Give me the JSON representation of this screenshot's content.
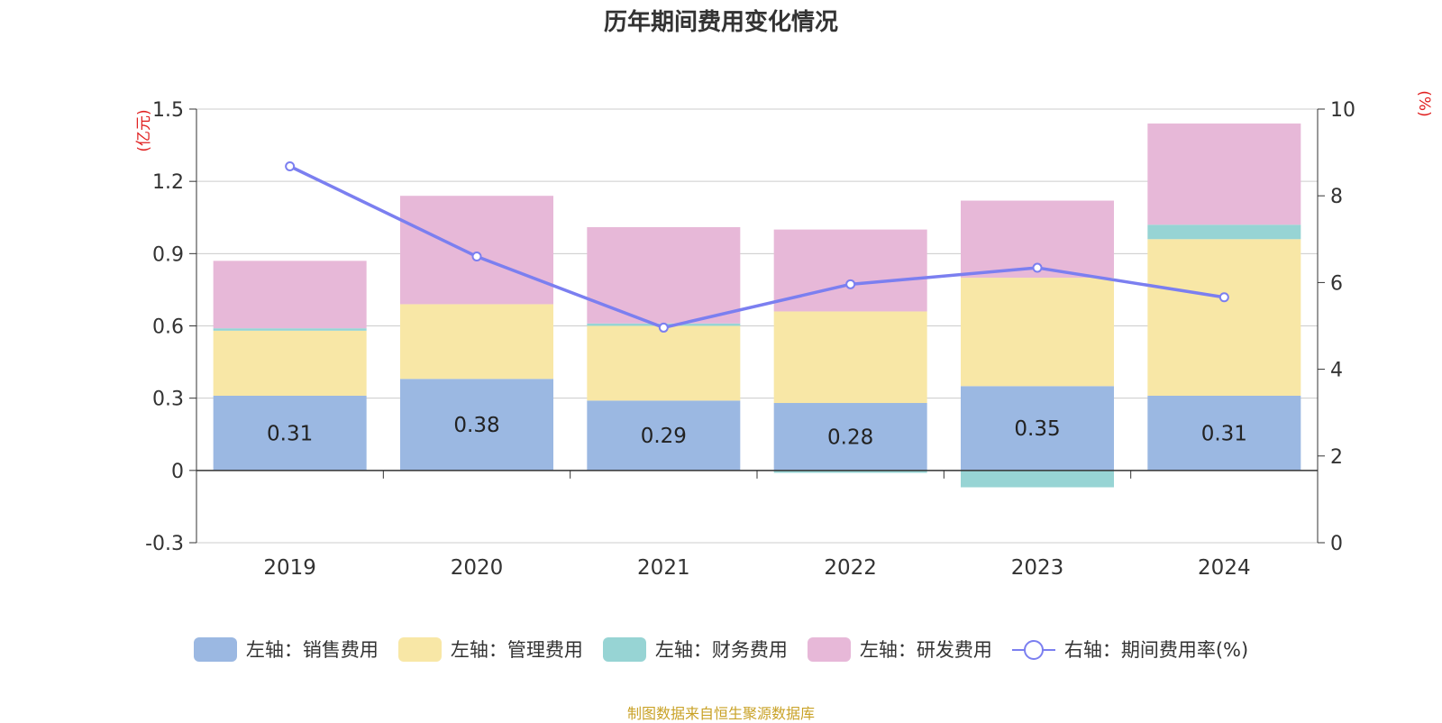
{
  "chart_data": {
    "type": "bar",
    "title": "历年期间费用变化情况",
    "categories": [
      "2019",
      "2020",
      "2021",
      "2022",
      "2023",
      "2024"
    ],
    "y_left_unit": "(亿元)",
    "y_right_unit": "(%)",
    "y_left_ticks": [
      "1.5",
      "1.2",
      "0.9",
      "0.6",
      "0.3",
      "0",
      "-0.3"
    ],
    "y_right_ticks": [
      "10",
      "8",
      "6",
      "4",
      "2",
      "0"
    ],
    "ylim_left": [
      -0.3,
      1.5
    ],
    "ylim_right": [
      0,
      10
    ],
    "stacked": true,
    "series": [
      {
        "name": "左轴：销售费用",
        "axis": "left",
        "color": "#9bb8e2",
        "values": [
          0.31,
          0.38,
          0.29,
          0.28,
          0.35,
          0.31
        ],
        "labels": [
          "0.31",
          "0.38",
          "0.29",
          "0.28",
          "0.35",
          "0.31"
        ]
      },
      {
        "name": "左轴：管理费用",
        "axis": "left",
        "color": "#f8e7a6",
        "values": [
          0.27,
          0.31,
          0.31,
          0.38,
          0.45,
          0.65
        ]
      },
      {
        "name": "左轴：财务费用",
        "axis": "left",
        "color": "#97d4d4",
        "values": [
          0.01,
          0.0,
          0.01,
          -0.01,
          -0.07,
          0.06
        ]
      },
      {
        "name": "左轴：研发费用",
        "axis": "left",
        "color": "#e7b8d8",
        "values": [
          0.28,
          0.45,
          0.4,
          0.34,
          0.32,
          0.42
        ]
      },
      {
        "name": "右轴：期间费用率(%)",
        "axis": "right",
        "type": "line",
        "color": "#7b7ff0",
        "values": [
          8.68,
          6.6,
          4.96,
          5.96,
          6.34,
          5.66
        ]
      }
    ],
    "grid": true,
    "legend_position": "bottom"
  },
  "source_note": "制图数据来自恒生聚源数据库"
}
